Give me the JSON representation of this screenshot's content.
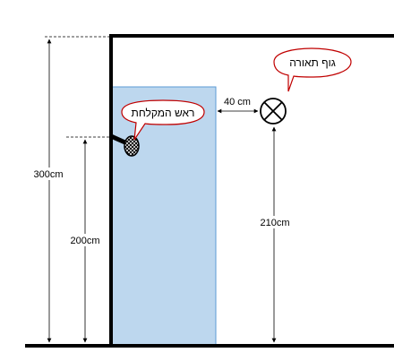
{
  "labels": {
    "height_total": "300cm",
    "height_head": "200cm",
    "height_fixture": "210cm",
    "distance_horizontal": "40 cm"
  },
  "callouts": {
    "light_fixture": "גוף תאורה",
    "shower_head": "ראש המקלחת"
  },
  "colors": {
    "wall": "#000000",
    "shower_area_fill": "#bdd7ee",
    "shower_area_stroke": "#5b9bd5",
    "callout_stroke": "#c00000",
    "dimension_line": "#000000"
  },
  "icons": {
    "light_fixture": "circle-x-icon",
    "shower_head": "mesh-shower-head-icon"
  }
}
